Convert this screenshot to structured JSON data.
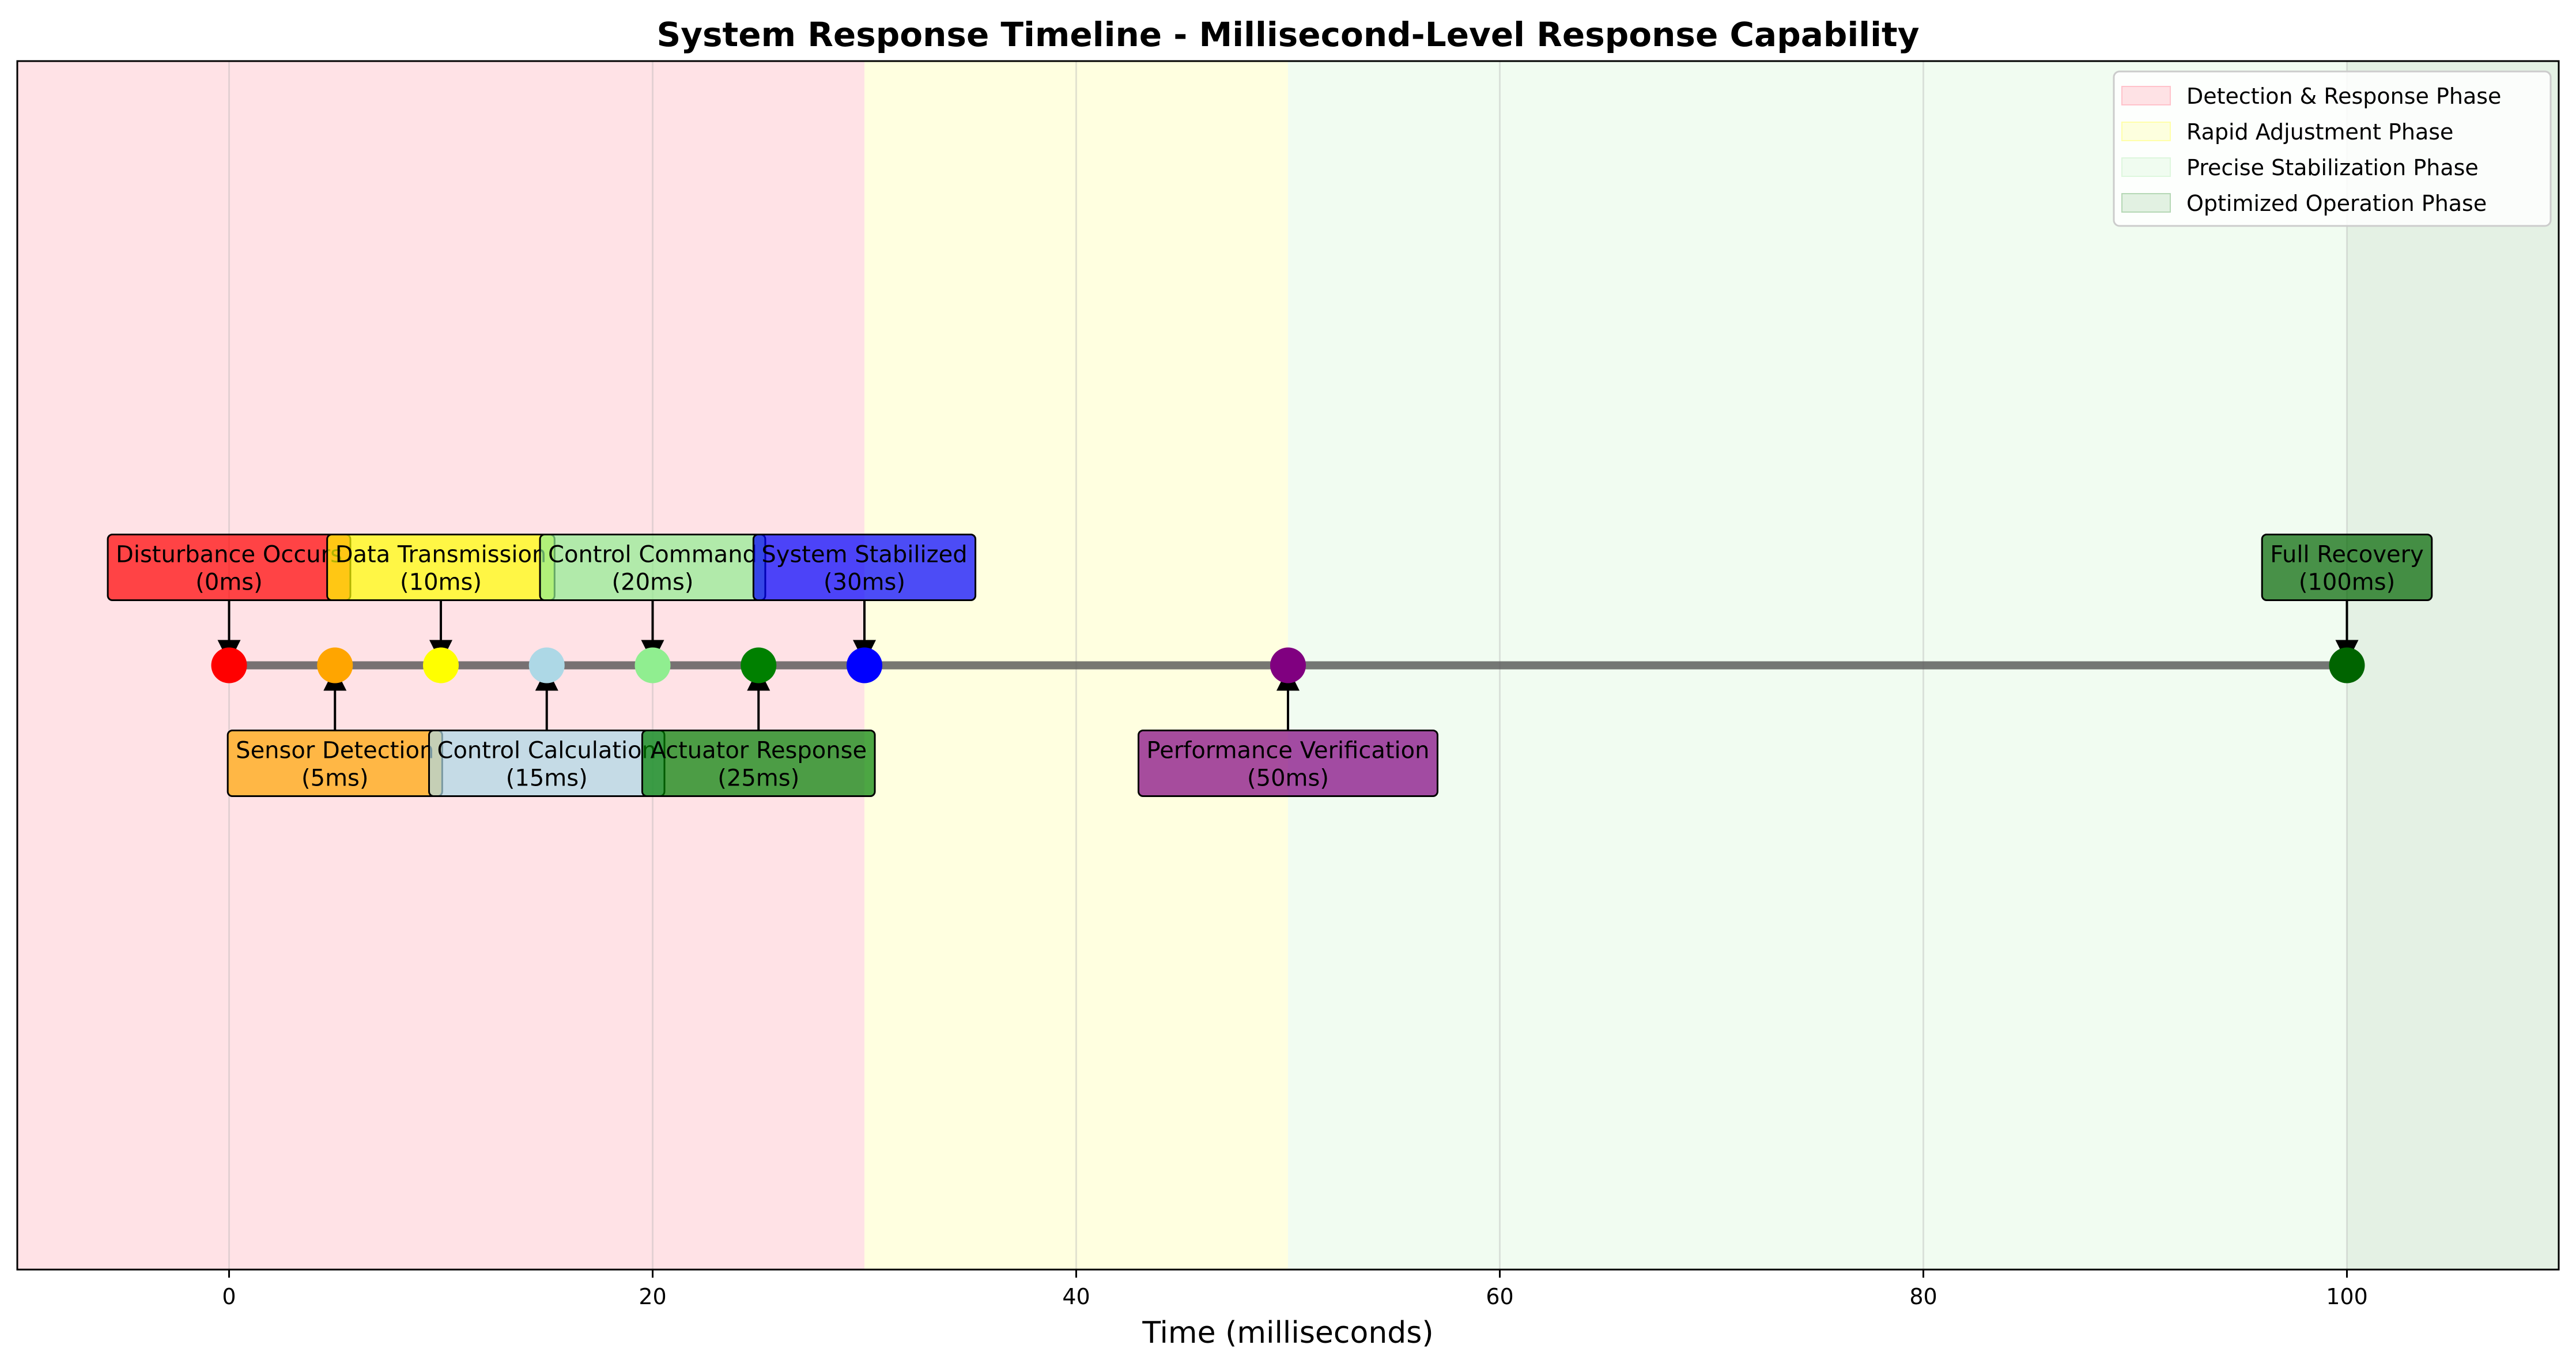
{
  "chart_data": {
    "type": "timeline",
    "title": "System Response Timeline - Millisecond-Level Response Capability",
    "xlabel": "Time (milliseconds)",
    "ylabel": "",
    "xlim": [
      -10,
      110
    ],
    "ylim": [
      -1,
      1
    ],
    "xticks": [
      0,
      20,
      40,
      60,
      80,
      100
    ],
    "grid": true,
    "legend_position": "top-right",
    "timeline_y": 0,
    "phases": [
      {
        "name": "Detection & Response Phase",
        "start": -10,
        "end": 30,
        "color": "#ffb6c1",
        "alpha": 0.4
      },
      {
        "name": "Rapid Adjustment Phase",
        "start": 30,
        "end": 50,
        "color": "#ffff99",
        "alpha": 0.3
      },
      {
        "name": "Precise Stabilization Phase",
        "start": 50,
        "end": 100,
        "color": "#d7f5d7",
        "alpha": 0.35
      },
      {
        "name": "Optimized Operation Phase",
        "start": 100,
        "end": 110,
        "color": "#a6cfa6",
        "alpha": 0.3
      }
    ],
    "events": [
      {
        "time": 0,
        "label": "Disturbance Occurs",
        "time_label": "(0ms)",
        "color": "#ff0000",
        "position": "above"
      },
      {
        "time": 5,
        "label": "Sensor Detection",
        "time_label": "(5ms)",
        "color": "#ffa500",
        "position": "below"
      },
      {
        "time": 10,
        "label": "Data Transmission",
        "time_label": "(10ms)",
        "color": "#ffff00",
        "position": "above"
      },
      {
        "time": 15,
        "label": "Control Calculation",
        "time_label": "(15ms)",
        "color": "#add8e6",
        "position": "below"
      },
      {
        "time": 20,
        "label": "Control Command",
        "time_label": "(20ms)",
        "color": "#90ee90",
        "position": "above"
      },
      {
        "time": 25,
        "label": "Actuator Response",
        "time_label": "(25ms)",
        "color": "#008000",
        "position": "below"
      },
      {
        "time": 30,
        "label": "System Stabilized",
        "time_label": "(30ms)",
        "color": "#0000ff",
        "position": "above"
      },
      {
        "time": 50,
        "label": "Performance Verification",
        "time_label": "(50ms)",
        "color": "#800080",
        "position": "below"
      },
      {
        "time": 100,
        "label": "Full Recovery",
        "time_label": "(100ms)",
        "color": "#006400",
        "position": "above"
      }
    ]
  }
}
